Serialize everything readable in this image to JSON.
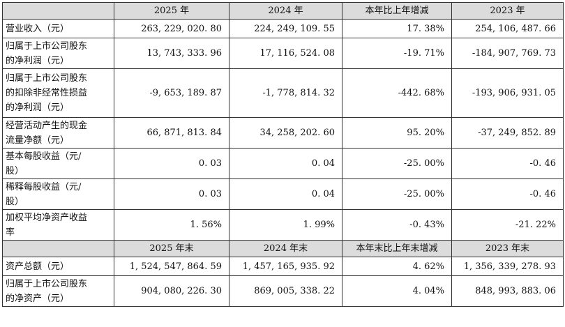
{
  "table": {
    "header1": [
      "",
      "2025 年",
      "2024 年",
      "本年比上年增减",
      "2023 年"
    ],
    "rows1": [
      {
        "label": [
          "营业收入（元）"
        ],
        "values": [
          "263, 229, 020. 80",
          "224, 249, 109. 55",
          "17. 38%",
          "254, 106, 487. 66"
        ]
      },
      {
        "label": [
          "归属于上市公司股东",
          "的净利润（元）"
        ],
        "values": [
          "13, 743, 333. 96",
          "17, 116, 524. 08",
          "-19. 71%",
          "-184, 907, 769. 73"
        ]
      },
      {
        "label": [
          "归属于上市公司股东",
          "的扣除非经常性损益",
          "的净利润（元）"
        ],
        "values": [
          "-9, 653, 189. 87",
          "-1, 778, 814. 32",
          "-442. 68%",
          "-193, 906, 931. 05"
        ]
      },
      {
        "label": [
          "经营活动产生的现金",
          "流量净额（元）"
        ],
        "values": [
          "66, 871, 813. 84",
          "34, 258, 202. 60",
          "95. 20%",
          "-37, 249, 852. 89"
        ]
      },
      {
        "label": [
          "基本每股收益（元/",
          "股）"
        ],
        "values": [
          "0. 03",
          "0. 04",
          "-25. 00%",
          "-0. 46"
        ]
      },
      {
        "label": [
          "稀释每股收益（元/",
          "股）"
        ],
        "values": [
          "0. 03",
          "0. 04",
          "-25. 00%",
          "-0. 46"
        ]
      },
      {
        "label": [
          "加权平均净资产收益",
          "率"
        ],
        "values": [
          "1. 56%",
          "1. 99%",
          "-0. 43%",
          "-21. 22%"
        ]
      }
    ],
    "header2": [
      "",
      "2025 年末",
      "2024 年末",
      "本年末比上年末增减",
      "2023 年末"
    ],
    "rows2": [
      {
        "label": [
          "资产总额（元）"
        ],
        "values": [
          "1, 524, 547, 864. 59",
          "1, 457, 165, 935. 92",
          "4. 62%",
          "1, 356, 339, 278. 93"
        ]
      },
      {
        "label": [
          "归属于上市公司股东",
          "的净资产（元）"
        ],
        "values": [
          "904, 080, 226. 30",
          "869, 005, 338. 22",
          "4. 04%",
          "848, 993, 883. 06"
        ]
      }
    ]
  }
}
